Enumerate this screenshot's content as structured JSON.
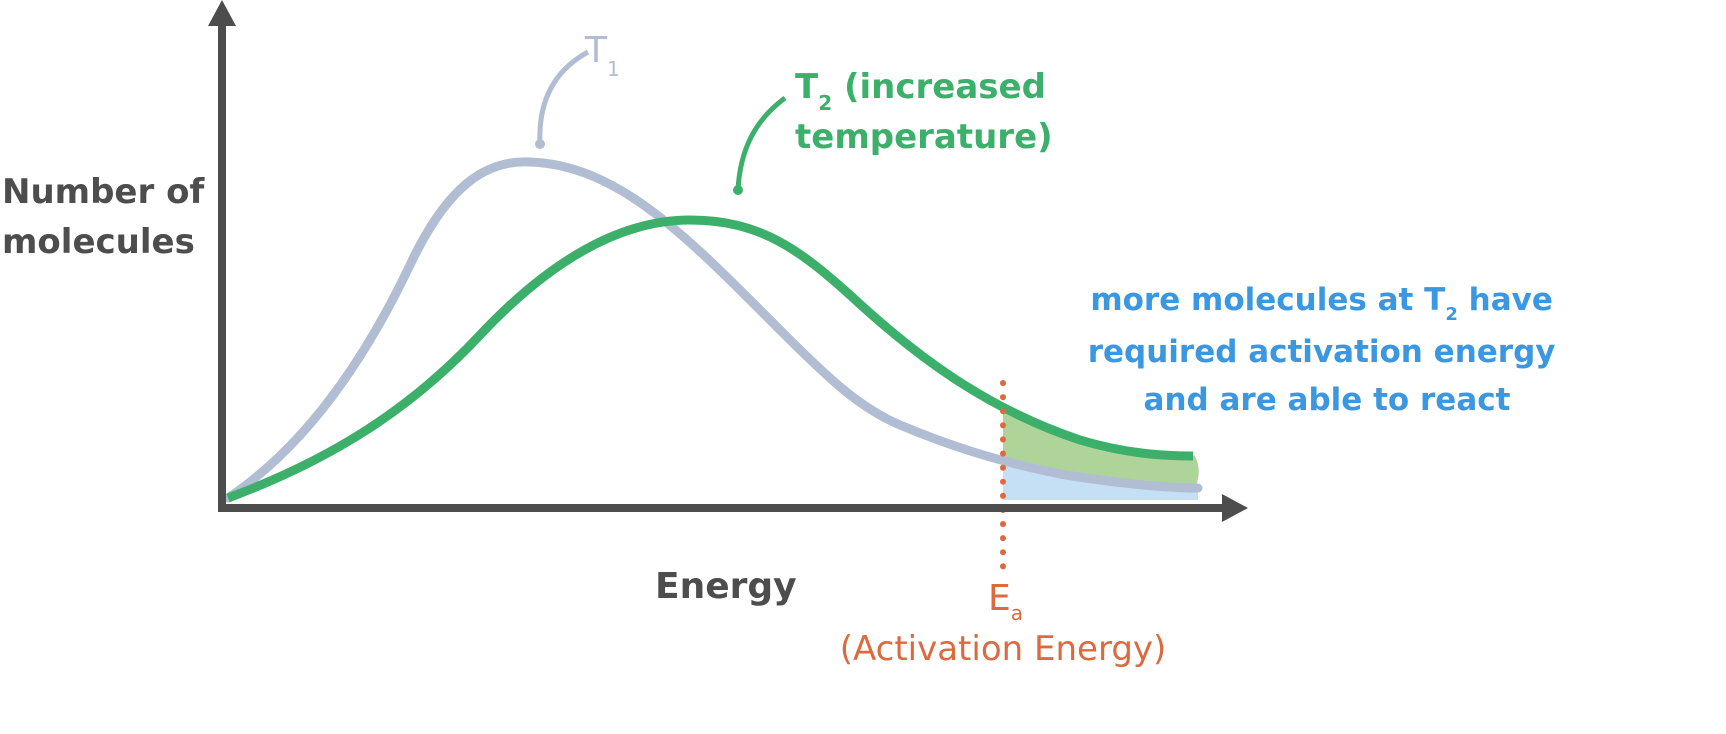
{
  "y_axis_label": {
    "line1": "Number of",
    "line2": "molecules"
  },
  "x_axis_label": "Energy",
  "curve_t1": {
    "label": "T",
    "subscript": "1"
  },
  "curve_t2": {
    "label": "T",
    "subscript": "2",
    "line1_rest": " (increased",
    "line2": "temperature)"
  },
  "activation": {
    "label": "E",
    "subscript": "a",
    "caption": "(Activation Energy)"
  },
  "annotation": {
    "line1_pre": "more molecules at T",
    "line1_sub": "2",
    "line1_post": " have",
    "line2": "required activation energy",
    "line3": "and are able to react"
  },
  "colors": {
    "axis": "#4d4d4d",
    "t1": "#b1bdd2",
    "t2": "#3cb06a",
    "activation": "#dc6a3f",
    "annotation": "#3a97e0",
    "fill_t2_extra": "#aed49a",
    "fill_t1": "#c5dff5"
  }
}
